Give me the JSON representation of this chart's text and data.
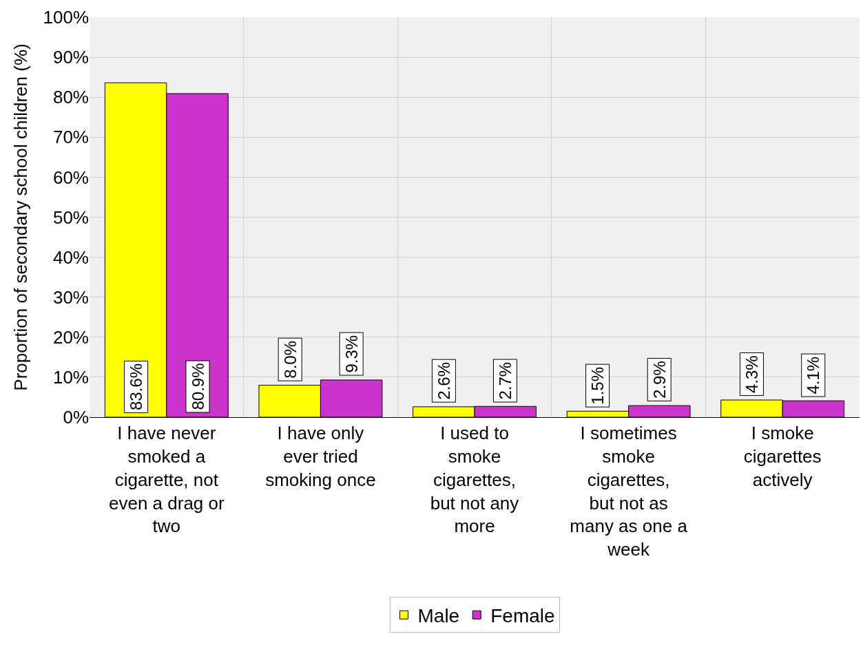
{
  "chart_data": {
    "type": "bar",
    "ylabel": "Proportion of secondary school children (%)",
    "categories": [
      "I have never smoked a cigarette, not even a drag or two",
      "I have only ever tried smoking once",
      "I used to smoke cigarettes, but not any more",
      "I sometimes smoke cigarettes, but not as many as one a week",
      "I smoke cigarettes actively"
    ],
    "series": [
      {
        "name": "Male",
        "color": "#ffff00",
        "values": [
          83.6,
          8.0,
          2.6,
          1.5,
          4.3
        ],
        "value_labels": [
          "83.6%",
          "8.0%",
          "2.6%",
          "1.5%",
          "4.3%"
        ]
      },
      {
        "name": "Female",
        "color": "#cc33cc",
        "values": [
          80.9,
          9.3,
          2.7,
          2.9,
          4.1
        ],
        "value_labels": [
          "80.9%",
          "9.3%",
          "2.7%",
          "2.9%",
          "4.1%"
        ]
      }
    ],
    "ylim": [
      0,
      100
    ],
    "yticks": [
      {
        "value": 0,
        "label": "0%"
      },
      {
        "value": 10,
        "label": "10%"
      },
      {
        "value": 20,
        "label": "20%"
      },
      {
        "value": 30,
        "label": "30%"
      },
      {
        "value": 40,
        "label": "40%"
      },
      {
        "value": 50,
        "label": "50%"
      },
      {
        "value": 60,
        "label": "60%"
      },
      {
        "value": 70,
        "label": "70%"
      },
      {
        "value": 80,
        "label": "80%"
      },
      {
        "value": 90,
        "label": "90%"
      },
      {
        "value": 100,
        "label": "100%"
      }
    ],
    "grid": true,
    "legend": "bottom"
  }
}
